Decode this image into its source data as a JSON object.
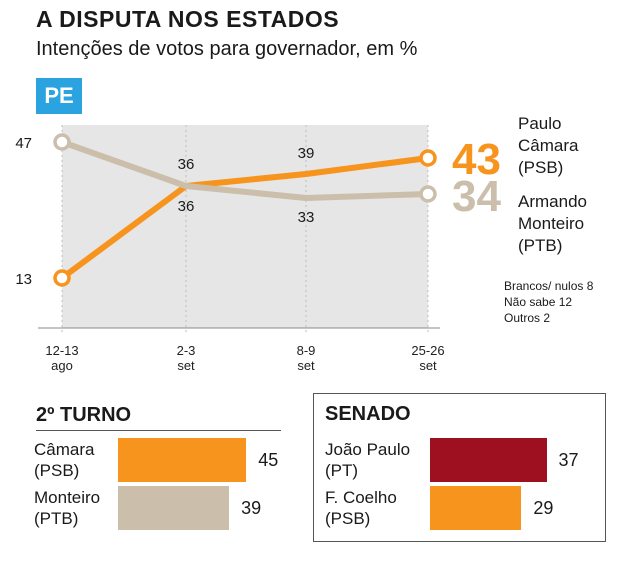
{
  "header": {
    "title": "A DISPUTA NOS ESTADOS",
    "subtitle": "Intenções de votos para governador, em %",
    "state": "PE"
  },
  "colors": {
    "camara": "#f7941d",
    "monteiro": "#cbbfab",
    "joao_paulo": "#9e1020",
    "plot_bg": "#e6e6e6",
    "badge": "#2aa3e0"
  },
  "chart_data": [
    {
      "type": "line",
      "x": [
        "12-13\nago",
        "2-3\nset",
        "8-9\nset",
        "25-26\nset"
      ],
      "series": [
        {
          "name": "Paulo\nCâmara\n(PSB)",
          "values": [
            13,
            36,
            39,
            43
          ],
          "color": "#f7941d",
          "labels": [
            "13",
            "36",
            "39",
            "43"
          ]
        },
        {
          "name": "Armando\nMonteiro\n(PTB)",
          "values": [
            47,
            36,
            33,
            34
          ],
          "color": "#cbbfab",
          "labels": [
            "47",
            "36",
            "33",
            "34"
          ]
        }
      ],
      "grid": true,
      "legend": "right"
    },
    {
      "type": "bar",
      "title": "2º TURNO",
      "categories": [
        "Câmara\n(PSB)",
        "Monteiro\n(PTB)"
      ],
      "values": [
        45,
        39
      ],
      "colors": [
        "#f7941d",
        "#cbbfab"
      ]
    },
    {
      "type": "bar",
      "title": "SENADO",
      "categories": [
        "João Paulo\n(PT)",
        "F. Coelho\n(PSB)"
      ],
      "values": [
        37,
        29
      ],
      "colors": [
        "#9e1020",
        "#f7941d"
      ]
    }
  ],
  "notes": [
    "Brancos/ nulos 8",
    "Não sabe 12",
    "Outros 2"
  ]
}
